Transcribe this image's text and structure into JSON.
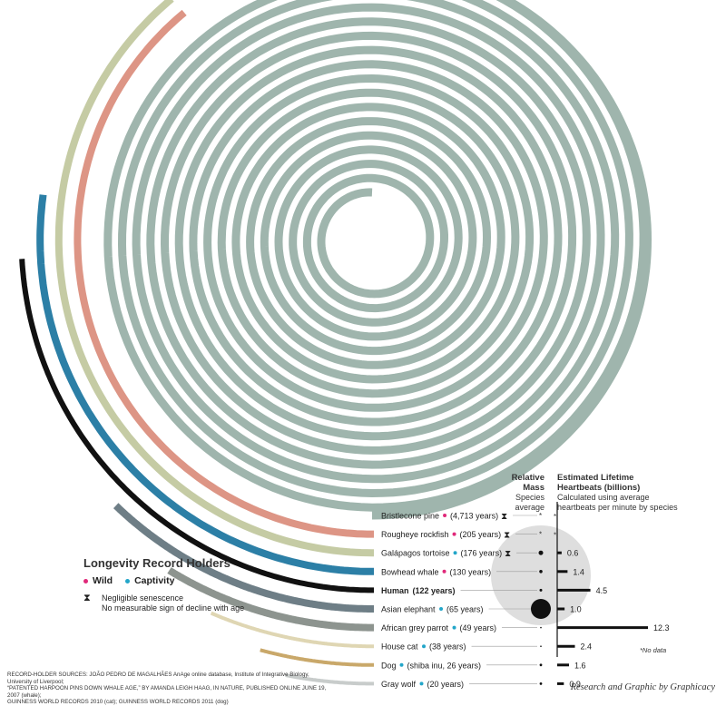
{
  "chart_data": {
    "type": "spiral-bar",
    "title": "Longevity Record Holders",
    "legend": {
      "wild": {
        "label": "Wild",
        "color": "#e0297a"
      },
      "captivity": {
        "label": "Captivity",
        "color": "#23a6c9"
      },
      "senescence": {
        "title": "Negligible senescence",
        "desc": "No measurable sign of decline with age"
      }
    },
    "mass_header": {
      "title": "Relative Mass",
      "sub": "Species average"
    },
    "heartbeat_header": {
      "title": "Estimated Lifetime Heartbeats (billions)",
      "title_line1": "Estimated Lifetime",
      "title_line2": "Heartbeats (billions)",
      "sub_line1": "Calculated using average",
      "sub_line2": "heartbeats per minute by species"
    },
    "species": [
      {
        "name": "Bristlecone pine",
        "years": 4713,
        "detail": "(4,713 years)",
        "status": "wild",
        "senescence": true,
        "color": "#9fb5ad",
        "heartbeats": null,
        "heartbeats_label": "*"
      },
      {
        "name": "Rougheye rockfish",
        "years": 205,
        "detail": "(205 years)",
        "status": "wild",
        "senescence": true,
        "color": "#dd9585",
        "heartbeats": null,
        "heartbeats_label": "*"
      },
      {
        "name": "Galápagos tortoise",
        "years": 176,
        "detail": "(176 years)",
        "status": "captivity",
        "senescence": true,
        "color": "#c5cba4",
        "heartbeats": 0.6,
        "heartbeats_label": "0.6"
      },
      {
        "name": "Bowhead whale",
        "years": 130,
        "detail": "(130 years)",
        "status": "wild",
        "senescence": false,
        "color": "#2c7fa6",
        "heartbeats": 1.4,
        "heartbeats_label": "1.4"
      },
      {
        "name": "Human",
        "years": 122,
        "detail": "(122 years)",
        "status": "none",
        "senescence": false,
        "color": "#111111",
        "heartbeats": 4.5,
        "heartbeats_label": "4.5"
      },
      {
        "name": "Asian elephant",
        "years": 65,
        "detail": "(65 years)",
        "status": "captivity",
        "senescence": false,
        "color": "#6e7e86",
        "heartbeats": 1.0,
        "heartbeats_label": "1.0"
      },
      {
        "name": "African grey parrot",
        "years": 49,
        "detail": "(49 years)",
        "status": "captivity",
        "senescence": false,
        "color": "#8d948f",
        "heartbeats": 12.3,
        "heartbeats_label": "12.3"
      },
      {
        "name": "House cat",
        "years": 38,
        "detail": "(38 years)",
        "status": "captivity",
        "senescence": false,
        "color": "#dfd6b3",
        "heartbeats": 2.4,
        "heartbeats_label": "2.4"
      },
      {
        "name": "Dog",
        "years": 26,
        "detail": "(shiba inu, 26 years)",
        "status": "captivity",
        "senescence": false,
        "color": "#c9a86a",
        "heartbeats": 1.6,
        "heartbeats_label": "1.6"
      },
      {
        "name": "Gray wolf",
        "years": 20,
        "detail": "(20 years)",
        "status": "captivity",
        "senescence": false,
        "color": "#c8cccb",
        "heartbeats": 0.9,
        "heartbeats_label": "0.9"
      }
    ],
    "no_data_note": "*No data"
  },
  "footer": {
    "sources_line1": "RECORD-HOLDER SOURCES: JOÃO PEDRO DE MAGALHÃES AnAge online database, Institute of Integrative Biology, University of Liverpool;",
    "sources_line2": "“PATENTED HARPOON PINS DOWN WHALE AGE,” BY AMANDA LEIGH HAAG, IN NATURE, PUBLISHED ONLINE JUNE 19, 2007 (whale);",
    "sources_line3": "GUINNESS WORLD RECORDS 2010 (cat); GUINNESS WORLD RECORDS 2011 (dog)",
    "credit": "Research and Graphic by Graphicacy"
  }
}
